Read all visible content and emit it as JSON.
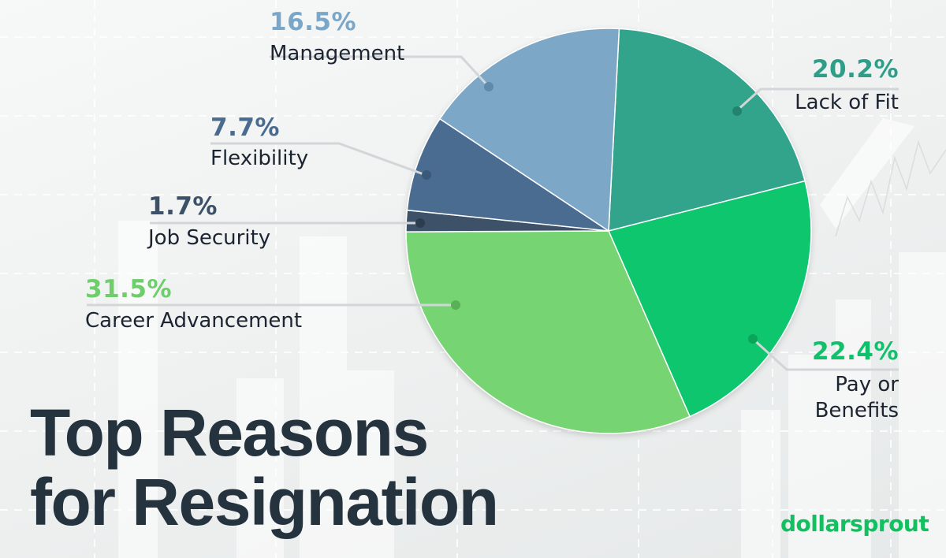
{
  "title": {
    "line1": "Top Reasons",
    "line2": "for Resignation"
  },
  "brand": {
    "logo_text": "dollarsprout",
    "color": "#12c05f"
  },
  "labels": {
    "management": {
      "pct": "16.5%",
      "name": "Management",
      "color": "#7aa6c8"
    },
    "flexibility": {
      "pct": "7.7%",
      "name": "Flexibility",
      "color": "#4a6b90"
    },
    "job_security": {
      "pct": "1.7%",
      "name": "Job Security",
      "color": "#3c5068"
    },
    "career": {
      "pct": "31.5%",
      "name": "Career Advancement",
      "color": "#6dce6a"
    },
    "lack_of_fit": {
      "pct": "20.2%",
      "name": "Lack of Fit",
      "color": "#2e9e88"
    },
    "pay": {
      "pct": "22.4%",
      "name_line1": "Pay or",
      "name_line2": "Benefits",
      "color": "#10c06a"
    }
  },
  "chart_data": {
    "type": "pie",
    "title": "Top Reasons for Resignation",
    "categories": [
      "Lack of Fit",
      "Pay or Benefits",
      "Career Advancement",
      "Job Security",
      "Flexibility",
      "Management"
    ],
    "values": [
      20.2,
      22.4,
      31.5,
      1.7,
      7.7,
      16.5
    ],
    "unit": "%",
    "colors": [
      "#31a48c",
      "#0ec66e",
      "#76d572",
      "#3d5168",
      "#4a6c90",
      "#7ba7c7"
    ],
    "start_angle_deg_clockwise_from_top": 3,
    "direction": "clockwise",
    "legend": "none (direct labels with leader lines)"
  }
}
